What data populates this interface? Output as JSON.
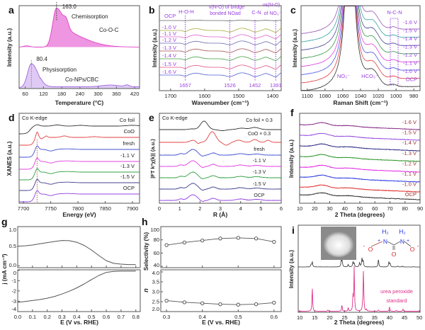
{
  "chart_data": [
    {
      "panel": "a",
      "type": "area",
      "xlabel": "Temperature (°C)",
      "ylabel": "Intensity (a.u.)",
      "xlim": [
        40,
        436
      ],
      "xticks": [
        "60",
        "120",
        "180",
        "240",
        "300",
        "360",
        "420"
      ],
      "series": [
        {
          "name": "Co-O-C",
          "peak": 163.0,
          "peak_label": "163.0",
          "annotation": "Chemisorption",
          "color": "#e040c8"
        },
        {
          "name": "Co-NPs/CBC",
          "peak": 80.4,
          "peak_label": "80.4",
          "annotation": "Physisorption",
          "color": "#a066e0"
        }
      ]
    },
    {
      "panel": "b",
      "type": "line",
      "xlabel": "Wavenumber (cm⁻¹)",
      "ylabel": "Intensity (a.u.)",
      "xlim": [
        1733,
        1375
      ],
      "xticks": [
        "1700",
        "1600",
        "1500",
        "1400"
      ],
      "series_labels": [
        "OCP",
        "-1.0 V",
        "-1.1 V",
        "-1.2 V",
        "-1.3 V",
        "-1.4 V",
        "-1.5 V",
        "-1.6 V"
      ],
      "series_colors": [
        "#666666",
        "#a8a83a",
        "#e060d0",
        "#6a6ab0",
        "#a05050",
        "#40a040",
        "#e05080",
        "#5060d0"
      ],
      "markers": [
        "1657",
        "1526",
        "1452",
        "1391"
      ],
      "annotations": {
        "hoh": "H-O-H",
        "bridge_1": "ν(N-O) of bridge",
        "bridge_2": "bonded NOad",
        "cn": "C-N",
        "nitrate_1": "νs(N-O)",
        "nitrate_2": "of NO₃⁻"
      },
      "label_color": "#9a40e0"
    },
    {
      "panel": "c",
      "type": "line",
      "xlabel": "Raman Shift (cm⁻¹)",
      "ylabel": "Intensity (a.u.)",
      "xlim": [
        1107,
        973
      ],
      "xticks": [
        "1100",
        "1080",
        "1060",
        "1040",
        "1020",
        "1000",
        "980"
      ],
      "series_labels": [
        "-1.6 V",
        "-1.5 V",
        "-1.4 V",
        "-1.3 V",
        "-1.2 V",
        "-1.1 V",
        "-1.0 V",
        "OCP"
      ],
      "series_colors": [
        "#9b59b6",
        "#3aa6a6",
        "#4a4a9a",
        "#3a9a4a",
        "#e040e0",
        "#4a5ae0",
        "#e04040",
        "#333333"
      ],
      "annotations": {
        "ncn": "N-C-N",
        "nitrate": "NO₃⁻",
        "bicarbonate": "HCO₃⁻"
      },
      "label_color": "#9a40e0"
    },
    {
      "panel": "d",
      "type": "line",
      "title": "Co K-edge",
      "xlabel": "Energy (eV)",
      "ylabel": "XANES (a.u.)",
      "xlim": [
        7692,
        7913
      ],
      "xticks": [
        "7700",
        "7750",
        "7800",
        "7850",
        "7900"
      ],
      "series_labels": [
        "Co foil",
        "CoO",
        "fresh",
        "-1.1 V",
        "-1.3 V",
        "-1.5 V",
        "OCP"
      ],
      "series_colors": [
        "#333333",
        "#e04040",
        "#4050d0",
        "#e040e0",
        "#30a040",
        "#404090",
        "#9040e0"
      ],
      "reference_line": 7725
    },
    {
      "panel": "e",
      "type": "line",
      "title": "Co K-edge",
      "xlabel": "R (Å)",
      "ylabel": "|FT k³χ(k)| (a.u.)",
      "xlim": [
        0,
        6
      ],
      "xticks": [
        "0",
        "1",
        "2",
        "3",
        "4",
        "5",
        "6"
      ],
      "series_labels": [
        "Co foil × 0.3",
        "CoO × 0.3",
        "fresh",
        "-1.1 V",
        "-1.3 V",
        "-1.5 V",
        "OCP"
      ],
      "series_colors": [
        "#333333",
        "#e04040",
        "#4050d0",
        "#e040e0",
        "#30a040",
        "#404090",
        "#9040e0"
      ]
    },
    {
      "panel": "f",
      "type": "line",
      "xlabel": "2 Theta (degrees)",
      "ylabel": "Intensity (a.u.)",
      "xlim": [
        10,
        90
      ],
      "xticks": [
        "10",
        "20",
        "30",
        "40",
        "50",
        "60",
        "70",
        "80",
        "90"
      ],
      "series_labels": [
        "-1.6 V",
        "-1.5 V",
        "-1.4 V",
        "-1.3 V",
        "-1.2 V",
        "-1.1 V",
        "-1.0 V",
        "OCP"
      ],
      "series_colors": [
        "#802080",
        "#9040e0",
        "#202080",
        "#209020",
        "#e020e0",
        "#2030e0",
        "#e02020",
        "#222222"
      ],
      "label_color": "#a03030"
    },
    {
      "panel": "g",
      "type": "line",
      "xlabel": "E (V vs. RHE)",
      "ylabel": "j (mA cm⁻²)",
      "xlim": [
        0,
        0.83
      ],
      "xticks": [
        "0.0",
        "0.1",
        "0.2",
        "0.3",
        "0.4",
        "0.5",
        "0.6",
        "0.7",
        "0.8"
      ],
      "top": {
        "ylim": [
          -0.05,
          1.0
        ],
        "yticks": [
          "0.0",
          "0.5",
          "1.0"
        ]
      },
      "bottom": {
        "ylim": [
          -4,
          0.05
        ],
        "yticks": [
          "0",
          "-1",
          "-2",
          "-3",
          "-4"
        ]
      },
      "x": [
        0,
        0.05,
        0.1,
        0.15,
        0.2,
        0.25,
        0.3,
        0.35,
        0.4,
        0.45,
        0.5,
        0.55,
        0.6,
        0.65,
        0.7,
        0.75,
        0.8
      ],
      "series": [
        {
          "values": [
            0.5,
            0.51,
            0.53,
            0.56,
            0.59,
            0.62,
            0.645,
            0.64,
            0.6,
            0.52,
            0.4,
            0.26,
            0.13,
            0.06,
            0.04,
            0.03,
            0.03
          ]
        },
        {
          "values": [
            -3.1,
            -3.02,
            -2.93,
            -2.83,
            -2.7,
            -2.53,
            -2.3,
            -2.02,
            -1.7,
            -1.32,
            -0.9,
            -0.5,
            -0.2,
            -0.1,
            -0.08,
            -0.08,
            -0.08
          ]
        }
      ]
    },
    {
      "panel": "h",
      "type": "line",
      "xlabel": "E (V vs. RHE)",
      "xlim": [
        0.284,
        0.62
      ],
      "xticks": [
        "0.3",
        "0.4",
        "0.5",
        "0.6"
      ],
      "x": [
        0.3,
        0.35,
        0.4,
        0.45,
        0.5,
        0.55,
        0.6
      ],
      "top": {
        "ylabel": "Selectivity (%)",
        "ylim": [
          37.9,
          100
        ],
        "yticks": [
          "40",
          "60",
          "80",
          "100"
        ],
        "values": [
          72,
          76,
          79,
          82,
          83,
          82,
          77
        ]
      },
      "bottom": {
        "ylabel": "n",
        "ylim": [
          2.0,
          4.107
        ],
        "yticks": [
          "2.0",
          "2.5",
          "3.0",
          "3.5",
          "4.0"
        ],
        "values": [
          2.55,
          2.47,
          2.42,
          2.37,
          2.35,
          2.37,
          2.45
        ]
      }
    },
    {
      "panel": "i",
      "type": "line",
      "xlabel": "2 Theta (degrees)",
      "ylabel": "Intensity (a.u.)",
      "xlim": [
        9.5,
        50.2
      ],
      "xticks": [
        "10",
        "15",
        "20",
        "25",
        "30",
        "35",
        "40",
        "45",
        "50"
      ],
      "sample_peaks": [
        [
          13.8,
          0.3
        ],
        [
          14.2,
          0.6
        ],
        [
          23.9,
          0.8
        ],
        [
          24.2,
          0.6
        ],
        [
          26.2,
          0.3
        ],
        [
          27.8,
          0.6
        ],
        [
          28.2,
          0.4
        ],
        [
          30.0,
          0.5
        ],
        [
          30.8,
          1.0
        ],
        [
          31.2,
          0.7
        ],
        [
          36.3,
          0.9
        ],
        [
          39.8,
          0.6
        ],
        [
          40.2,
          0.4
        ],
        [
          42.8,
          0.1
        ],
        [
          44.3,
          0.1
        ],
        [
          48.0,
          0.05
        ]
      ],
      "standard_peaks": [
        [
          14.2,
          0.55
        ],
        [
          19.4,
          0.03
        ],
        [
          24.1,
          0.15
        ],
        [
          26.2,
          0.08
        ],
        [
          27.8,
          0.35
        ],
        [
          28.2,
          1.0
        ],
        [
          31.0,
          0.12
        ],
        [
          31.3,
          0.95
        ],
        [
          32.3,
          0.04
        ],
        [
          36.3,
          0.03
        ],
        [
          40.0,
          0.1
        ],
        [
          42.3,
          0.02
        ],
        [
          44.5,
          0.05
        ]
      ],
      "standard_label_1": "urea peroxide",
      "standard_label_2": "standard",
      "standard_color": "#e0308a",
      "molecule": {
        "h2_left": "H₂",
        "h2_right": "H₂",
        "n_left": "N",
        "n_right": "N",
        "plus": "+",
        "o_left": "O",
        "o_right": "O",
        "o_bottom": "O",
        "minus": "-"
      }
    }
  ]
}
